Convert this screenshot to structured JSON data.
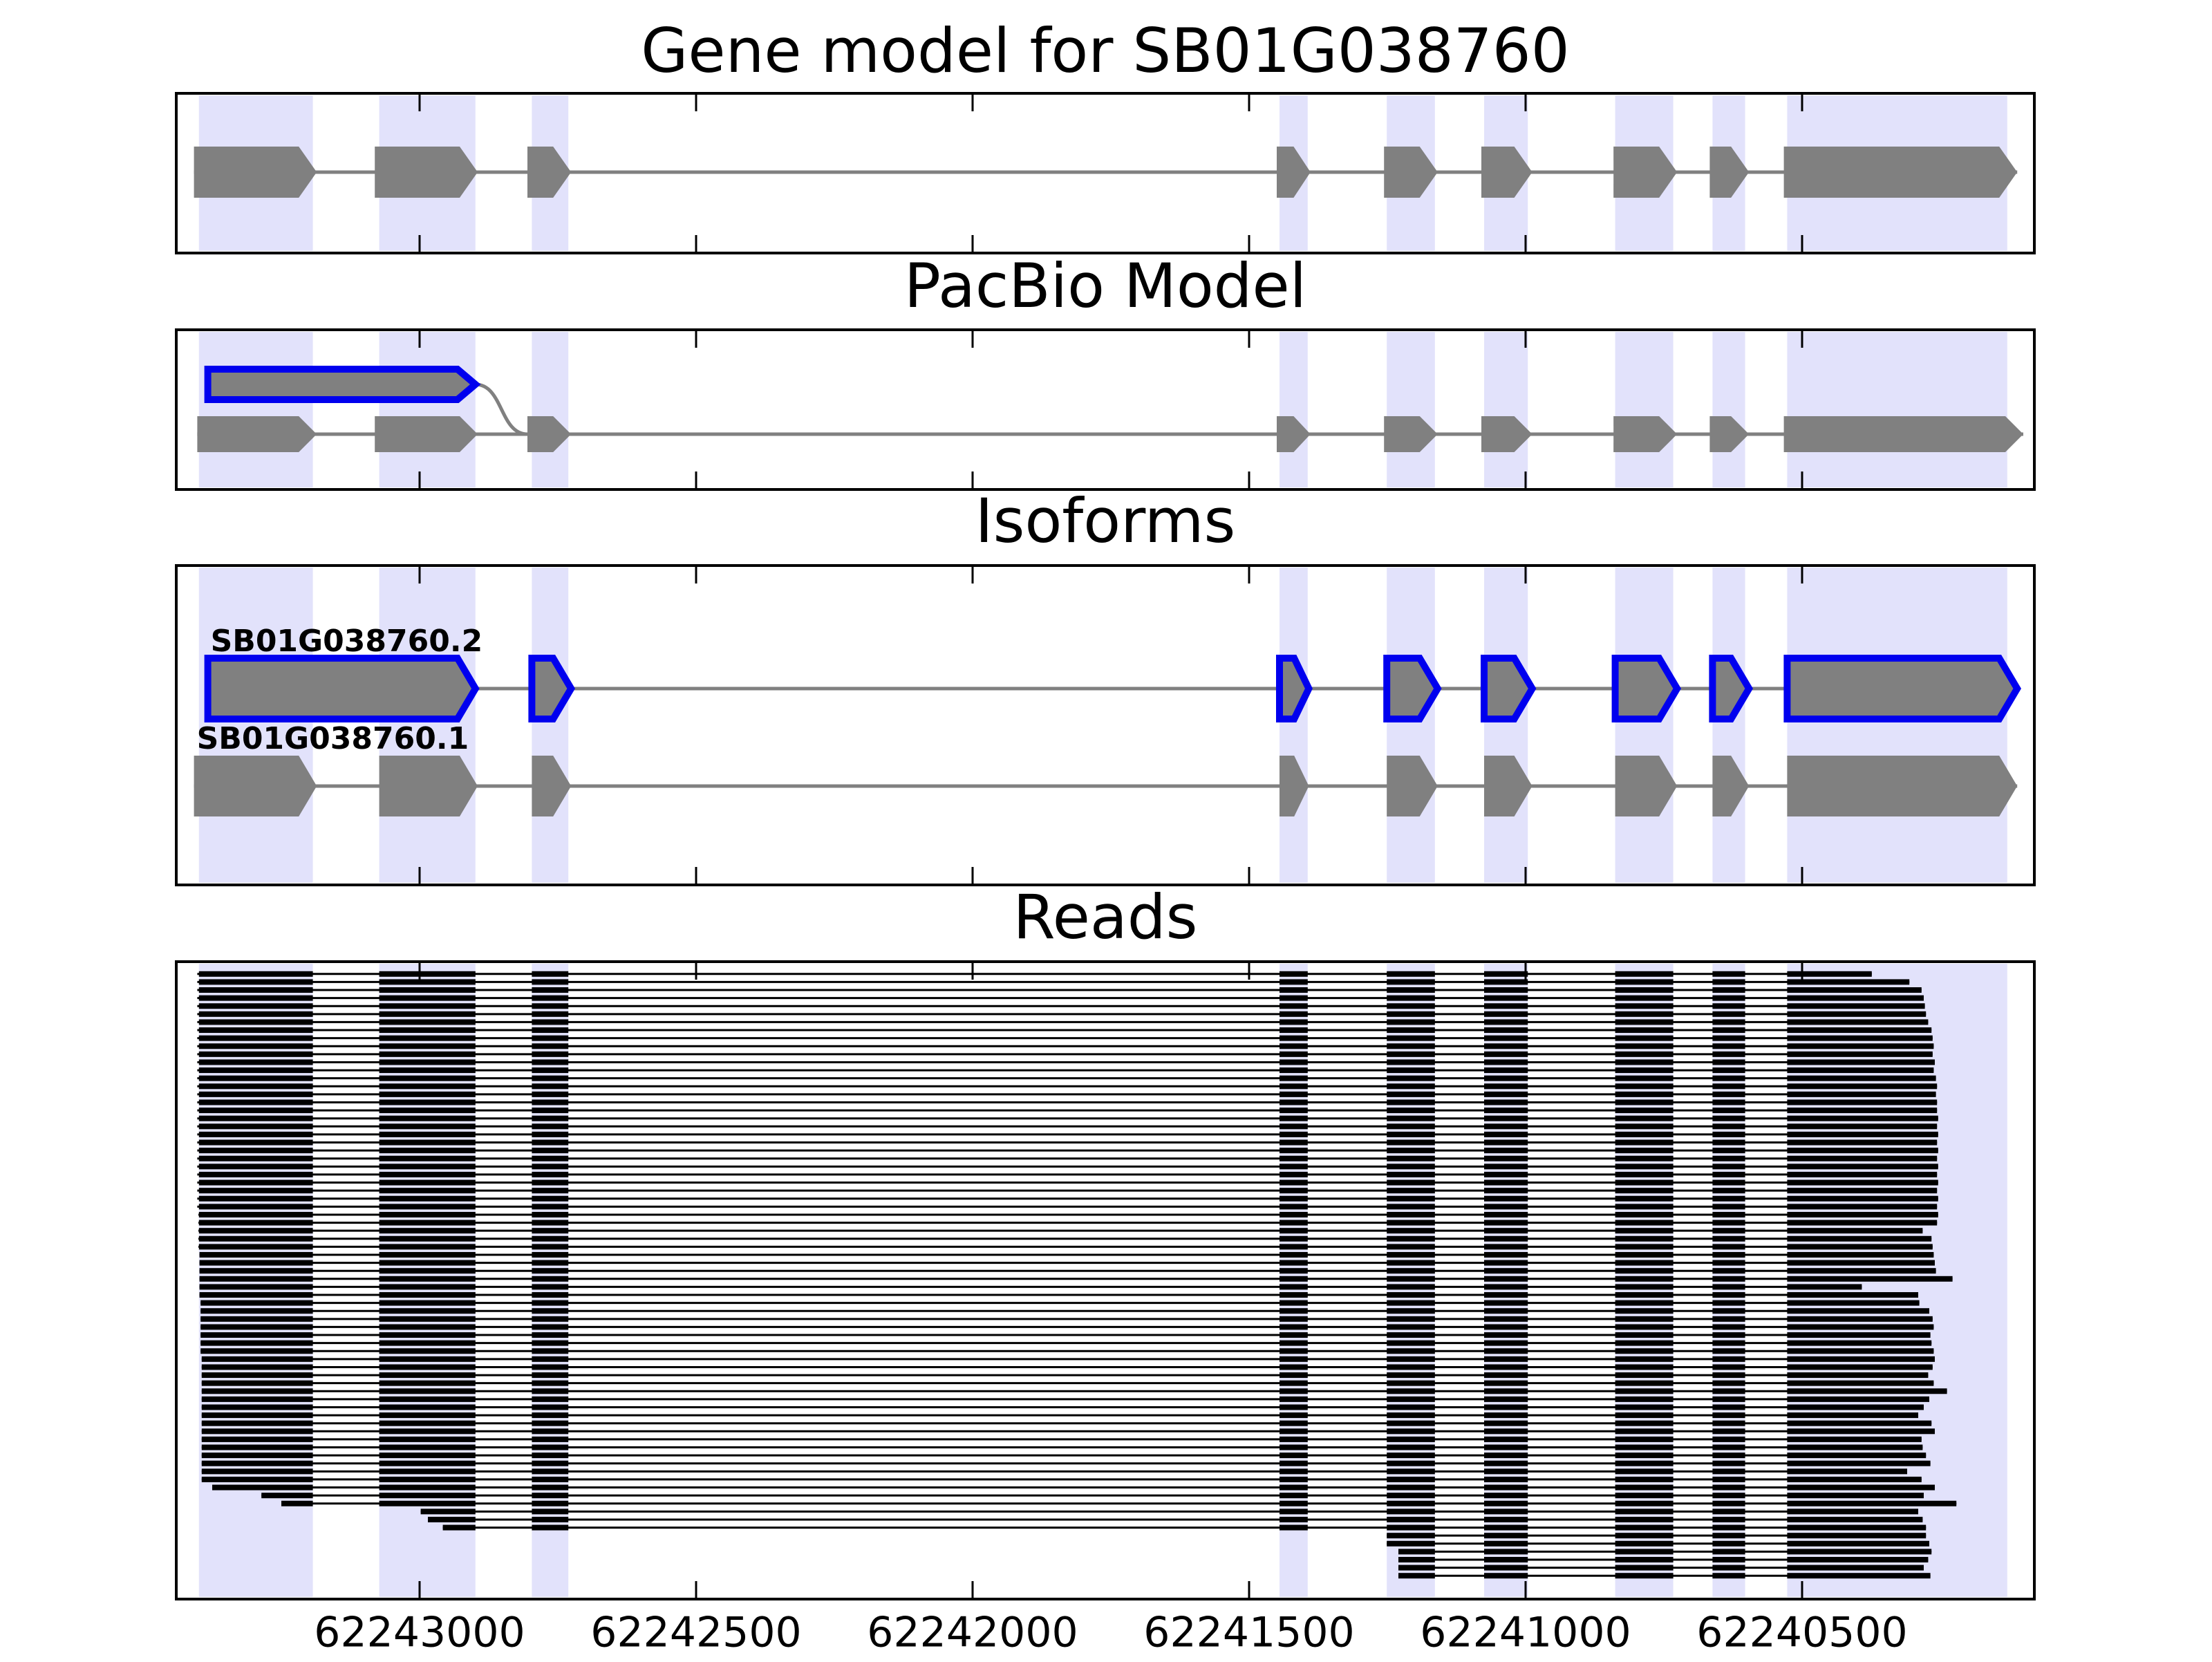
{
  "chart_data": {
    "type": "genome",
    "xlim": [
      62243440,
      62240080
    ],
    "xticks": [
      62243000,
      62242500,
      62242000,
      62241500,
      62241000,
      62240500
    ],
    "shade_color": "#e2e2fb",
    "exon_color": "#808080",
    "read_color": "#000000",
    "exon_regions": [
      [
        62243399,
        62243193
      ],
      [
        62243073,
        62242899
      ],
      [
        62242797,
        62242731
      ],
      [
        62241445,
        62241394
      ],
      [
        62241251,
        62241164
      ],
      [
        62241075,
        62240996
      ],
      [
        62240838,
        62240733
      ],
      [
        62240662,
        62240603
      ],
      [
        62240527,
        62240129
      ]
    ],
    "panels": [
      {
        "title": "Gene model for SB01G038760",
        "tracks": [
          {
            "exons": [
              [
                62243408,
                62243186
              ],
              [
                62243081,
                62242895
              ],
              [
                62242805,
                62242726
              ],
              [
                62241450,
                62241389
              ],
              [
                62241256,
                62241159
              ],
              [
                62241080,
                62240988
              ],
              [
                62240841,
                62240726
              ],
              [
                62240667,
                62240596
              ],
              [
                62240533,
                62240111
              ]
            ]
          }
        ]
      },
      {
        "title": "PacBio Model",
        "tracks": [
          {
            "exons": [
              [
                62243383,
                62242899
              ]
            ],
            "outline": "#0000ee"
          },
          {
            "exons": [
              [
                62243402,
                62243186
              ],
              [
                62243081,
                62242895
              ],
              [
                62242805,
                62242726
              ],
              [
                62241450,
                62241389
              ],
              [
                62241256,
                62241159
              ],
              [
                62241080,
                62240988
              ],
              [
                62240841,
                62240726
              ],
              [
                62240667,
                62240596
              ],
              [
                62240533,
                62240100
              ]
            ]
          }
        ]
      },
      {
        "title": "Isoforms",
        "tracks": [
          {
            "label": "SB01G038760.2",
            "exons": [
              [
                62243383,
                62242899
              ],
              [
                62242797,
                62242726
              ],
              [
                62241445,
                62241392
              ],
              [
                62241251,
                62241159
              ],
              [
                62241075,
                62240988
              ],
              [
                62240838,
                62240726
              ],
              [
                62240662,
                62240596
              ],
              [
                62240527,
                62240111
              ]
            ],
            "outline": "#0000ee"
          },
          {
            "label": "SB01G038760.1",
            "exons": [
              [
                62243408,
                62243186
              ],
              [
                62243073,
                62242895
              ],
              [
                62242797,
                62242726
              ],
              [
                62241445,
                62241392
              ],
              [
                62241251,
                62241159
              ],
              [
                62241075,
                62240988
              ],
              [
                62240838,
                62240726
              ],
              [
                62240662,
                62240596
              ],
              [
                62240527,
                62240111
              ]
            ]
          }
        ]
      },
      {
        "title": "Reads",
        "reads": [
          [
            62243402,
            62240374
          ],
          [
            62243402,
            62240306
          ],
          [
            62243402,
            62240284
          ],
          [
            62243402,
            62240280
          ],
          [
            62243402,
            62240278
          ],
          [
            62243402,
            62240276
          ],
          [
            62243402,
            62240272
          ],
          [
            62243402,
            62240266
          ],
          [
            62243402,
            62240264
          ],
          [
            62243402,
            62240262
          ],
          [
            62243402,
            62240264
          ],
          [
            62243402,
            62240260
          ],
          [
            62243402,
            62240262
          ],
          [
            62243402,
            62240258
          ],
          [
            62243402,
            62240256
          ],
          [
            62243402,
            62240258
          ],
          [
            62243402,
            62240256
          ],
          [
            62243402,
            62240256
          ],
          [
            62243402,
            62240254
          ],
          [
            62243402,
            62240256
          ],
          [
            62243402,
            62240254
          ],
          [
            62243402,
            62240256
          ],
          [
            62243402,
            62240254
          ],
          [
            62243402,
            62240256
          ],
          [
            62243402,
            62240254
          ],
          [
            62243402,
            62240256
          ],
          [
            62243402,
            62240254
          ],
          [
            62243402,
            62240256
          ],
          [
            62243402,
            62240254
          ],
          [
            62243402,
            62240256
          ],
          [
            62243400,
            62240254
          ],
          [
            62243400,
            62240256
          ],
          [
            62243400,
            62240282
          ],
          [
            62243400,
            62240266
          ],
          [
            62243400,
            62240264
          ],
          [
            62243398,
            62240262
          ],
          [
            62243398,
            62240260
          ],
          [
            62243398,
            62240258
          ],
          [
            62243398,
            62240228
          ],
          [
            62243398,
            62240392
          ],
          [
            62243398,
            62240290
          ],
          [
            62243396,
            62240288
          ],
          [
            62243396,
            62240270
          ],
          [
            62243396,
            62240264
          ],
          [
            62243396,
            62240262
          ],
          [
            62243396,
            62240268
          ],
          [
            62243396,
            62240266
          ],
          [
            62243396,
            62240262
          ],
          [
            62243394,
            62240260
          ],
          [
            62243394,
            62240264
          ],
          [
            62243394,
            62240272
          ],
          [
            62243394,
            62240262
          ],
          [
            62243394,
            62240238
          ],
          [
            62243394,
            62240270
          ],
          [
            62243394,
            62240280
          ],
          [
            62243394,
            62240290
          ],
          [
            62243394,
            62240266
          ],
          [
            62243394,
            62240260
          ],
          [
            62243394,
            62240284
          ],
          [
            62243394,
            62240282
          ],
          [
            62243394,
            62240276
          ],
          [
            62243394,
            62240268
          ],
          [
            62243394,
            62240310
          ],
          [
            62243394,
            62240284
          ],
          [
            62243375,
            62240260
          ],
          [
            62243286,
            62240280
          ],
          [
            62243250,
            62240221
          ],
          [
            62242998,
            62240290
          ],
          [
            62242985,
            62240282
          ],
          [
            62242958,
            62240276
          ],
          [
            62241251,
            62240276
          ],
          [
            62241251,
            62240270
          ],
          [
            62241230,
            62240266
          ],
          [
            62241230,
            62240272
          ],
          [
            62241230,
            62240280
          ],
          [
            62241230,
            62240268
          ]
        ]
      }
    ]
  }
}
